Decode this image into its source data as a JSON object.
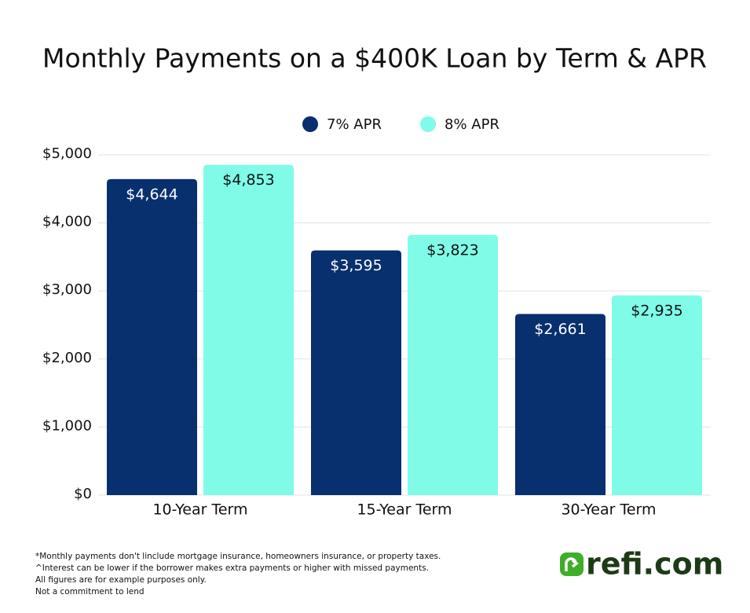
{
  "chart_data": {
    "type": "bar",
    "title": "Monthly Payments on a $400K Loan by Term & APR",
    "categories": [
      "10-Year Term",
      "15-Year Term",
      "30-Year Term"
    ],
    "series": [
      {
        "name": "7% APR",
        "color": "#082f6e",
        "values": [
          4644,
          3595,
          2661
        ],
        "value_labels": [
          "$4,644",
          "$3,595",
          "$2,661"
        ]
      },
      {
        "name": "8% APR",
        "color": "#7ffbe8",
        "values": [
          4853,
          3823,
          2935
        ],
        "value_labels": [
          "$4,853",
          "$3,823",
          "$2,935"
        ]
      }
    ],
    "ylim": [
      0,
      5000
    ],
    "yticks": [
      {
        "value": 0,
        "label": "$0"
      },
      {
        "value": 1000,
        "label": "$1,000"
      },
      {
        "value": 2000,
        "label": "$2,000"
      },
      {
        "value": 3000,
        "label": "$3,000"
      },
      {
        "value": 4000,
        "label": "$4,000"
      },
      {
        "value": 5000,
        "label": "$5,000"
      }
    ],
    "grid": true,
    "legend": "top"
  },
  "footnotes": [
    "*Monthly payments don't linclude mortgage insurance, homeowners insurance, or property taxes.",
    "^Interest can be lower if the borrower makes extra payments or higher with missed payments.",
    "All figures are for example purposes only.",
    "Not a commitment to lend"
  ],
  "logo": "refi.com"
}
